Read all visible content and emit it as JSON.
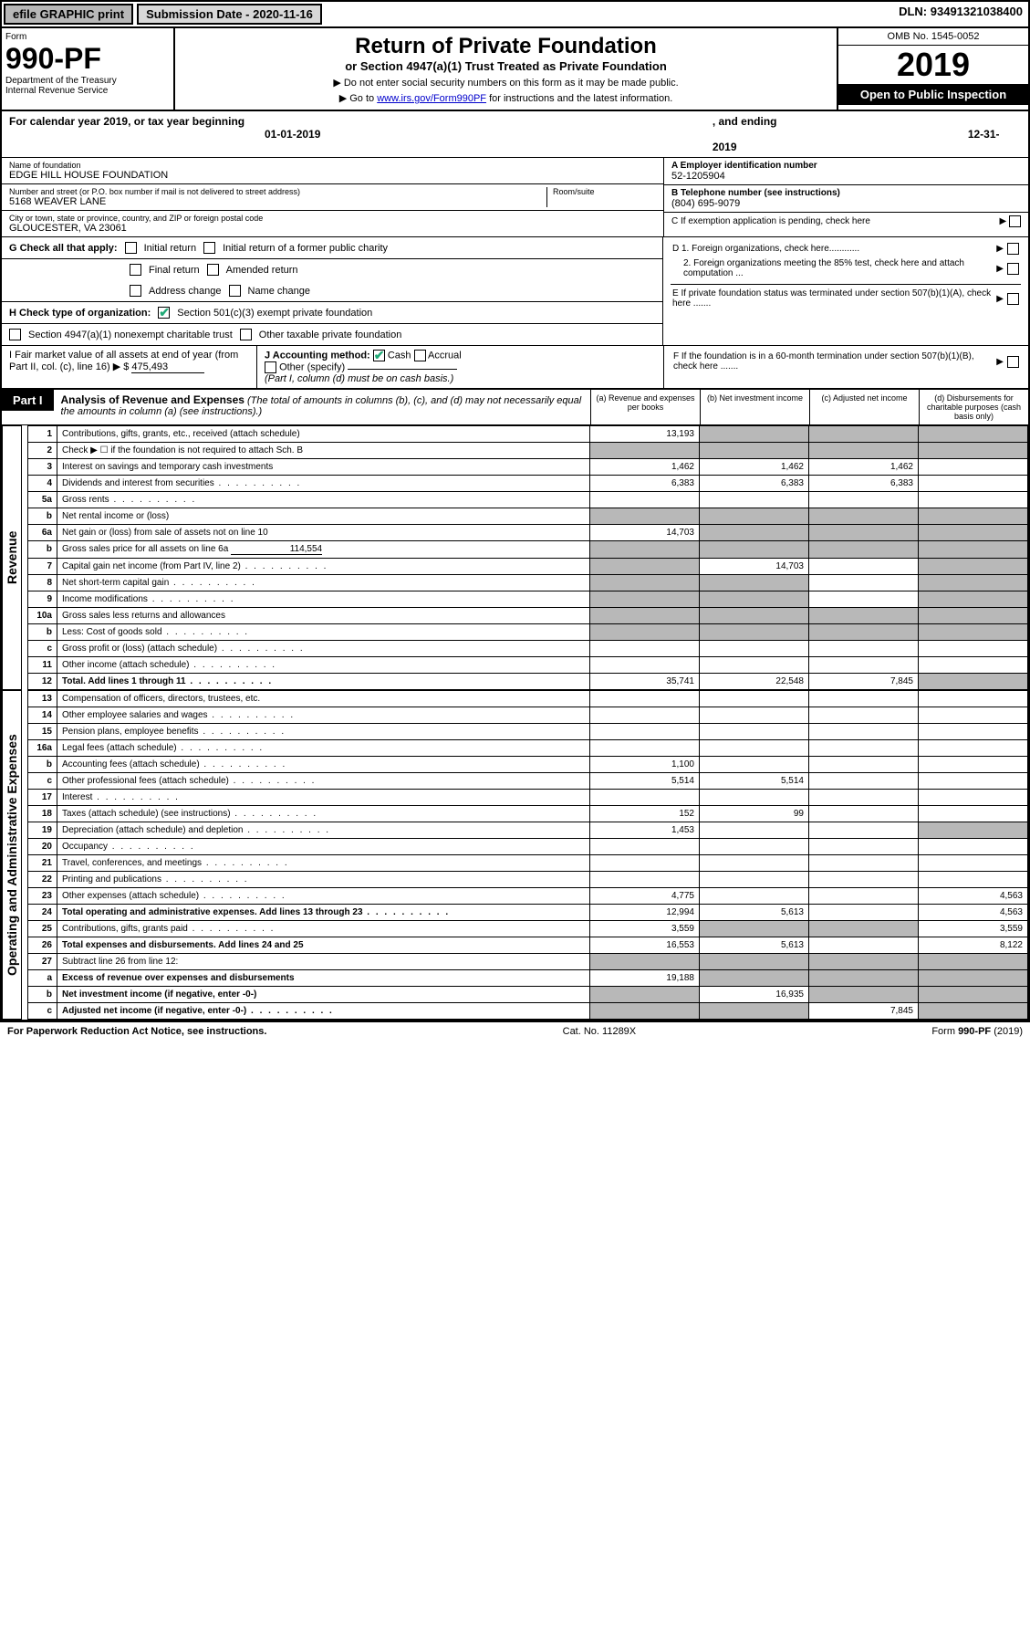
{
  "topbar": {
    "efile": "efile GRAPHIC print",
    "subdate_label": "Submission Date - ",
    "subdate": "2020-11-16",
    "dln_label": "DLN: ",
    "dln": "93491321038400"
  },
  "header": {
    "form_label": "Form",
    "form_num": "990-PF",
    "dept": "Department of the Treasury",
    "irs": "Internal Revenue Service",
    "title": "Return of Private Foundation",
    "subtitle": "or Section 4947(a)(1) Trust Treated as Private Foundation",
    "inst1": "▶ Do not enter social security numbers on this form as it may be made public.",
    "inst2_pre": "▶ Go to ",
    "inst2_link": "www.irs.gov/Form990PF",
    "inst2_post": " for instructions and the latest information.",
    "omb": "OMB No. 1545-0052",
    "year": "2019",
    "open": "Open to Public Inspection"
  },
  "calyear": {
    "pre": "For calendar year 2019, or tax year beginning ",
    "begin": "01-01-2019",
    "mid": ", and ending ",
    "end": "12-31-2019"
  },
  "info": {
    "name_label": "Name of foundation",
    "name": "EDGE HILL HOUSE FOUNDATION",
    "addr_label": "Number and street (or P.O. box number if mail is not delivered to street address)",
    "addr": "5168 WEAVER LANE",
    "room_label": "Room/suite",
    "city_label": "City or town, state or province, country, and ZIP or foreign postal code",
    "city": "GLOUCESTER, VA  23061",
    "a_label": "A Employer identification number",
    "a_val": "52-1205904",
    "b_label": "B Telephone number (see instructions)",
    "b_val": "(804) 695-9079",
    "c_label": "C If exemption application is pending, check here"
  },
  "g": {
    "label": "G Check all that apply:",
    "o1": "Initial return",
    "o2": "Initial return of a former public charity",
    "o3": "Final return",
    "o4": "Amended return",
    "o5": "Address change",
    "o6": "Name change"
  },
  "d": {
    "d1": "D 1. Foreign organizations, check here............",
    "d2": "2. Foreign organizations meeting the 85% test, check here and attach computation ...",
    "e": "E  If private foundation status was terminated under section 507(b)(1)(A), check here .......",
    "f": "F  If the foundation is in a 60-month termination under section 507(b)(1)(B), check here ......."
  },
  "h": {
    "label": "H Check type of organization:",
    "o1": "Section 501(c)(3) exempt private foundation",
    "o2": "Section 4947(a)(1) nonexempt charitable trust",
    "o3": "Other taxable private foundation"
  },
  "i": {
    "label": "I Fair market value of all assets at end of year (from Part II, col. (c), line 16) ▶ $",
    "val": "475,493"
  },
  "j": {
    "label": "J Accounting method:",
    "o1": "Cash",
    "o2": "Accrual",
    "o3": "Other (specify)",
    "note": "(Part I, column (d) must be on cash basis.)"
  },
  "part1": {
    "label": "Part I",
    "title": "Analysis of Revenue and Expenses",
    "note": "(The total of amounts in columns (b), (c), and (d) may not necessarily equal the amounts in column (a) (see instructions).)",
    "col_a": "(a) Revenue and expenses per books",
    "col_b": "(b) Net investment income",
    "col_c": "(c) Adjusted net income",
    "col_d": "(d) Disbursements for charitable purposes (cash basis only)"
  },
  "sides": {
    "rev": "Revenue",
    "exp": "Operating and Administrative Expenses"
  },
  "rows": {
    "r1": {
      "n": "1",
      "d": "Contributions, gifts, grants, etc., received (attach schedule)",
      "a": "13,193"
    },
    "r2": {
      "n": "2",
      "d": "Check ▶ ☐ if the foundation is not required to attach Sch. B"
    },
    "r3": {
      "n": "3",
      "d": "Interest on savings and temporary cash investments",
      "a": "1,462",
      "b": "1,462",
      "c": "1,462"
    },
    "r4": {
      "n": "4",
      "d": "Dividends and interest from securities",
      "a": "6,383",
      "b": "6,383",
      "c": "6,383"
    },
    "r5a": {
      "n": "5a",
      "d": "Gross rents"
    },
    "r5b": {
      "n": "b",
      "d": "Net rental income or (loss)"
    },
    "r6a": {
      "n": "6a",
      "d": "Net gain or (loss) from sale of assets not on line 10",
      "a": "14,703"
    },
    "r6b": {
      "n": "b",
      "d": "Gross sales price for all assets on line 6a",
      "u": "114,554"
    },
    "r7": {
      "n": "7",
      "d": "Capital gain net income (from Part IV, line 2)",
      "b": "14,703"
    },
    "r8": {
      "n": "8",
      "d": "Net short-term capital gain"
    },
    "r9": {
      "n": "9",
      "d": "Income modifications"
    },
    "r10a": {
      "n": "10a",
      "d": "Gross sales less returns and allowances"
    },
    "r10b": {
      "n": "b",
      "d": "Less: Cost of goods sold"
    },
    "r10c": {
      "n": "c",
      "d": "Gross profit or (loss) (attach schedule)"
    },
    "r11": {
      "n": "11",
      "d": "Other income (attach schedule)"
    },
    "r12": {
      "n": "12",
      "d": "Total. Add lines 1 through 11",
      "a": "35,741",
      "b": "22,548",
      "c": "7,845",
      "bold": true
    },
    "r13": {
      "n": "13",
      "d": "Compensation of officers, directors, trustees, etc."
    },
    "r14": {
      "n": "14",
      "d": "Other employee salaries and wages"
    },
    "r15": {
      "n": "15",
      "d": "Pension plans, employee benefits"
    },
    "r16a": {
      "n": "16a",
      "d": "Legal fees (attach schedule)"
    },
    "r16b": {
      "n": "b",
      "d": "Accounting fees (attach schedule)",
      "a": "1,100"
    },
    "r16c": {
      "n": "c",
      "d": "Other professional fees (attach schedule)",
      "a": "5,514",
      "b": "5,514"
    },
    "r17": {
      "n": "17",
      "d": "Interest"
    },
    "r18": {
      "n": "18",
      "d": "Taxes (attach schedule) (see instructions)",
      "a": "152",
      "b": "99"
    },
    "r19": {
      "n": "19",
      "d": "Depreciation (attach schedule) and depletion",
      "a": "1,453"
    },
    "r20": {
      "n": "20",
      "d": "Occupancy"
    },
    "r21": {
      "n": "21",
      "d": "Travel, conferences, and meetings"
    },
    "r22": {
      "n": "22",
      "d": "Printing and publications"
    },
    "r23": {
      "n": "23",
      "d": "Other expenses (attach schedule)",
      "a": "4,775",
      "dd": "4,563"
    },
    "r24": {
      "n": "24",
      "d": "Total operating and administrative expenses. Add lines 13 through 23",
      "a": "12,994",
      "b": "5,613",
      "dd": "4,563",
      "bold": true
    },
    "r25": {
      "n": "25",
      "d": "Contributions, gifts, grants paid",
      "a": "3,559",
      "dd": "3,559"
    },
    "r26": {
      "n": "26",
      "d": "Total expenses and disbursements. Add lines 24 and 25",
      "a": "16,553",
      "b": "5,613",
      "dd": "8,122",
      "bold": true
    },
    "r27": {
      "n": "27",
      "d": "Subtract line 26 from line 12:"
    },
    "r27a": {
      "n": "a",
      "d": "Excess of revenue over expenses and disbursements",
      "a": "19,188",
      "bold": true
    },
    "r27b": {
      "n": "b",
      "d": "Net investment income (if negative, enter -0-)",
      "b": "16,935",
      "bold": true
    },
    "r27c": {
      "n": "c",
      "d": "Adjusted net income (if negative, enter -0-)",
      "c": "7,845",
      "bold": true
    }
  },
  "footer": {
    "left": "For Paperwork Reduction Act Notice, see instructions.",
    "mid": "Cat. No. 11289X",
    "right": "Form 990-PF (2019)"
  }
}
